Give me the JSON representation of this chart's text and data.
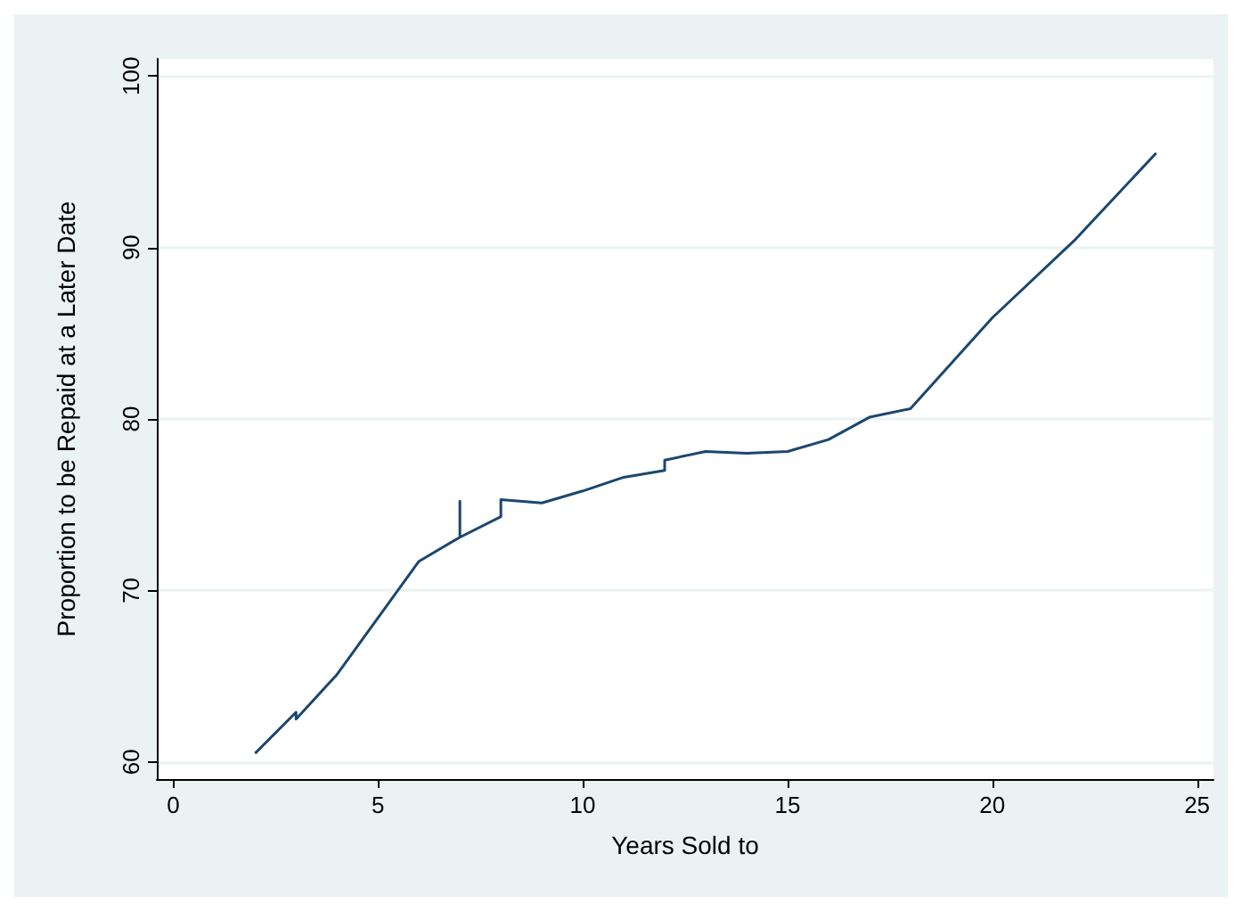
{
  "chart_data": {
    "type": "line",
    "xlabel": "Years Sold to",
    "ylabel": "Proportion to be Repaid at a Later Date",
    "series": [
      {
        "color": "#1a476f",
        "x": [
          2,
          3,
          3,
          4,
          5,
          6,
          7,
          7,
          7,
          8,
          8,
          9,
          10,
          11,
          12,
          12,
          13,
          14,
          15,
          16,
          17,
          18,
          20,
          22,
          24
        ],
        "values": [
          60.5,
          62.9,
          62.5,
          65.1,
          68.4,
          71.7,
          73.1,
          75.2,
          73.1,
          74.3,
          75.3,
          75.1,
          75.8,
          76.6,
          77.0,
          77.6,
          78.1,
          78.0,
          78.1,
          78.8,
          80.1,
          80.6,
          85.9,
          90.4,
          95.5
        ]
      }
    ],
    "xlim": [
      -0.4,
      25.4
    ],
    "xticks": [
      0,
      5,
      10,
      15,
      20,
      25
    ],
    "ylim": [
      59,
      101
    ],
    "yticks": [
      60,
      70,
      80,
      90,
      100
    ],
    "grid": "y",
    "marker": "none",
    "line_style": "solid"
  }
}
